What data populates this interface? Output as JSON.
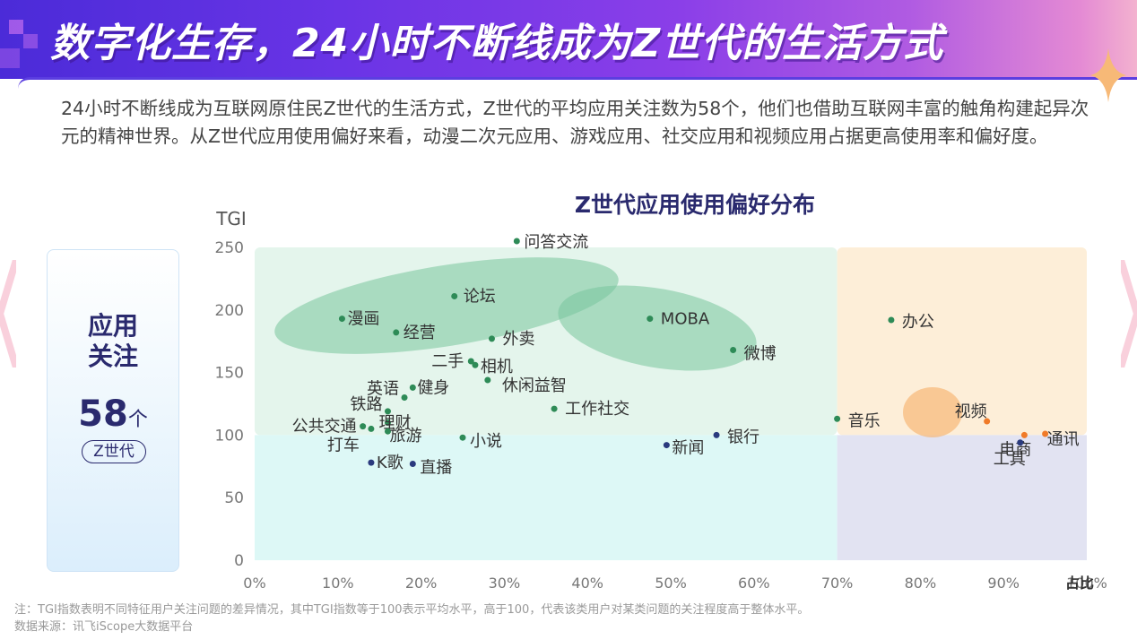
{
  "header": {
    "title": "数字化生存，24小时不断线成为Z世代的生活方式"
  },
  "intro": {
    "text": "24小时不断线成为互联网原住民Z世代的生活方式，Z世代的平均应用关注数为58个，他们也借助互联网丰富的触角构建起异次元的精神世界。从Z世代应用使用偏好来看，动漫二次元应用、游戏应用、社交应用和视频应用占据更高使用率和偏好度。"
  },
  "side_card": {
    "title_line1": "应用",
    "title_line2": "关注",
    "number": "58",
    "unit": "个",
    "pill": "Z世代"
  },
  "footer": {
    "note": "注：TGI指数表明不同特征用户关注问题的差异情况，其中TGI指数等于100表示平均水平，高于100，代表该类用户对某类问题的关注程度高于整体水平。",
    "source": "数据来源：讯飞iScope大数据平台"
  },
  "colors": {
    "title_navy": "#2a2a6e",
    "green_dot": "#2e8b57",
    "orange_dot": "#f07a28",
    "navy_dot": "#2a3a7e",
    "zone_green": "#e4f5ec",
    "zone_cyan": "#ddf8f6",
    "zone_orange": "#fdeed8",
    "zone_lavender": "#e2e3f2"
  },
  "chart_data": {
    "type": "scatter",
    "title": "Z世代应用使用偏好分布",
    "ylabel": "TGI",
    "xlabel": "占比",
    "xlim": [
      0,
      100
    ],
    "ylim": [
      0,
      250
    ],
    "x_ticks": [
      "0%",
      "10%",
      "20%",
      "30%",
      "40%",
      "50%",
      "60%",
      "70%",
      "80%",
      "90%",
      "100%"
    ],
    "y_ticks": [
      "0",
      "50",
      "100",
      "150",
      "200",
      "250"
    ],
    "reference_lines": {
      "x": 70,
      "y": 100
    },
    "highlight_ellipses": [
      "漫画-论坛-经营",
      "MOBA-微博",
      "视频"
    ],
    "points": [
      {
        "label": "问答交流",
        "x": 31.5,
        "y": 255,
        "color": "green"
      },
      {
        "label": "论坛",
        "x": 24,
        "y": 211,
        "color": "green"
      },
      {
        "label": "漫画",
        "x": 10.5,
        "y": 193,
        "color": "green"
      },
      {
        "label": "经营",
        "x": 17,
        "y": 182,
        "color": "green"
      },
      {
        "label": "外卖",
        "x": 28.5,
        "y": 177,
        "color": "green"
      },
      {
        "label": "二手",
        "x": 26,
        "y": 159,
        "color": "green"
      },
      {
        "label": "相机",
        "x": 26.5,
        "y": 156,
        "color": "green"
      },
      {
        "label": "休闲益智",
        "x": 28,
        "y": 144,
        "color": "green"
      },
      {
        "label": "英语",
        "x": 18,
        "y": 130,
        "color": "green"
      },
      {
        "label": "健身",
        "x": 19,
        "y": 138,
        "color": "green"
      },
      {
        "label": "铁路",
        "x": 16,
        "y": 119,
        "color": "green"
      },
      {
        "label": "理财",
        "x": 16,
        "y": 110,
        "color": "green"
      },
      {
        "label": "公共交通",
        "x": 13,
        "y": 107,
        "color": "green"
      },
      {
        "label": "打车",
        "x": 14,
        "y": 105,
        "color": "green"
      },
      {
        "label": "旅游",
        "x": 16,
        "y": 103,
        "color": "green"
      },
      {
        "label": "小说",
        "x": 25,
        "y": 98,
        "color": "green"
      },
      {
        "label": "K歌",
        "x": 14,
        "y": 78,
        "color": "navy"
      },
      {
        "label": "直播",
        "x": 19,
        "y": 77,
        "color": "navy"
      },
      {
        "label": "工作社交",
        "x": 36,
        "y": 121,
        "color": "green"
      },
      {
        "label": "MOBA",
        "x": 47.5,
        "y": 193,
        "color": "green"
      },
      {
        "label": "微博",
        "x": 57.5,
        "y": 168,
        "color": "green"
      },
      {
        "label": "新闻",
        "x": 49.5,
        "y": 92,
        "color": "navy"
      },
      {
        "label": "银行",
        "x": 55.5,
        "y": 100,
        "color": "navy"
      },
      {
        "label": "音乐",
        "x": 70,
        "y": 113,
        "color": "green"
      },
      {
        "label": "办公",
        "x": 76.5,
        "y": 192,
        "color": "green"
      },
      {
        "label": "视频",
        "x": 88,
        "y": 111,
        "color": "orange"
      },
      {
        "label": "电商",
        "x": 92.5,
        "y": 100,
        "color": "orange"
      },
      {
        "label": "通讯",
        "x": 95,
        "y": 101,
        "color": "orange"
      },
      {
        "label": "工具",
        "x": 92,
        "y": 94,
        "color": "navy"
      }
    ]
  }
}
